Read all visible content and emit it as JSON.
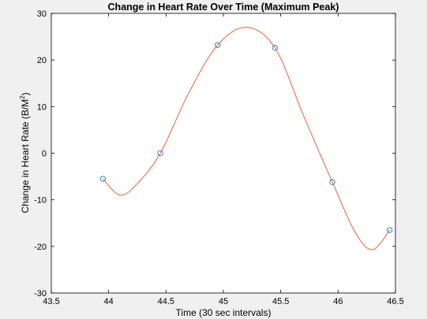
{
  "chart_data": {
    "type": "scatter",
    "title": "Change in Heart Rate Over Time (Maximum Peak)",
    "xlabel": "Time (30 sec intervals)",
    "ylabel_main": "Change in Heart Rate (B/M",
    "ylabel_sup": "2",
    "ylabel_close": ")",
    "xlim": [
      43.5,
      46.5
    ],
    "ylim": [
      -30,
      30
    ],
    "xticks": [
      "43.5",
      "44",
      "44.5",
      "45",
      "45.5",
      "46",
      "46.5"
    ],
    "yticks": [
      "-30",
      "-20",
      "-10",
      "0",
      "10",
      "20",
      "30"
    ],
    "grid": false,
    "colors": {
      "points": "#1f77b4",
      "curve": "#e8603c",
      "axes": "#000000",
      "plot_bg": "#ffffff",
      "figure_bg": "#f0f0f0"
    },
    "series": [
      {
        "style": "markers",
        "x": [
          43.95,
          44.45,
          44.95,
          45.45,
          45.95,
          46.45
        ],
        "y": [
          -5.5,
          0,
          23.2,
          22.6,
          -6.2,
          -16.5
        ]
      }
    ],
    "fit_curve": {
      "style": "line",
      "x": [
        43.95,
        44.1,
        44.25,
        44.45,
        44.7,
        44.95,
        45.2,
        45.45,
        45.7,
        45.95,
        46.15,
        46.3,
        46.45
      ],
      "y": [
        -5.5,
        -9.0,
        -6.5,
        0,
        13.0,
        23.2,
        27.0,
        22.6,
        8.0,
        -6.2,
        -17.0,
        -20.7,
        -16.5
      ]
    }
  }
}
